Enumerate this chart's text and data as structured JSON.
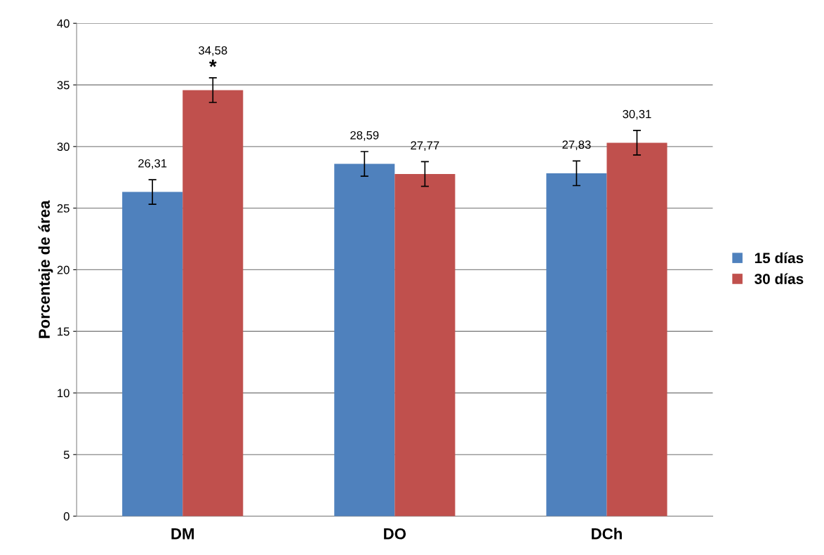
{
  "chart_data": {
    "type": "bar",
    "ylabel": "Porcentaje de área",
    "categories": [
      "DM",
      "DO",
      "DCh"
    ],
    "series": [
      {
        "name": "15 días",
        "color": "#4f81bd",
        "values": [
          26.31,
          28.59,
          27.83
        ],
        "errors": [
          1,
          1,
          1
        ],
        "value_labels": [
          "26,31",
          "28,59",
          "27,83"
        ]
      },
      {
        "name": "30 días",
        "color": "#c0504d",
        "values": [
          34.58,
          27.77,
          30.31
        ],
        "errors": [
          1,
          1,
          1
        ],
        "value_labels": [
          "34,58",
          "27,77",
          "30,31"
        ]
      }
    ],
    "ylim": [
      0,
      40
    ],
    "yticks": [
      0,
      5,
      10,
      15,
      20,
      25,
      30,
      35,
      40
    ],
    "grid": "y",
    "legend": "right",
    "annotations": [
      "*"
    ]
  }
}
